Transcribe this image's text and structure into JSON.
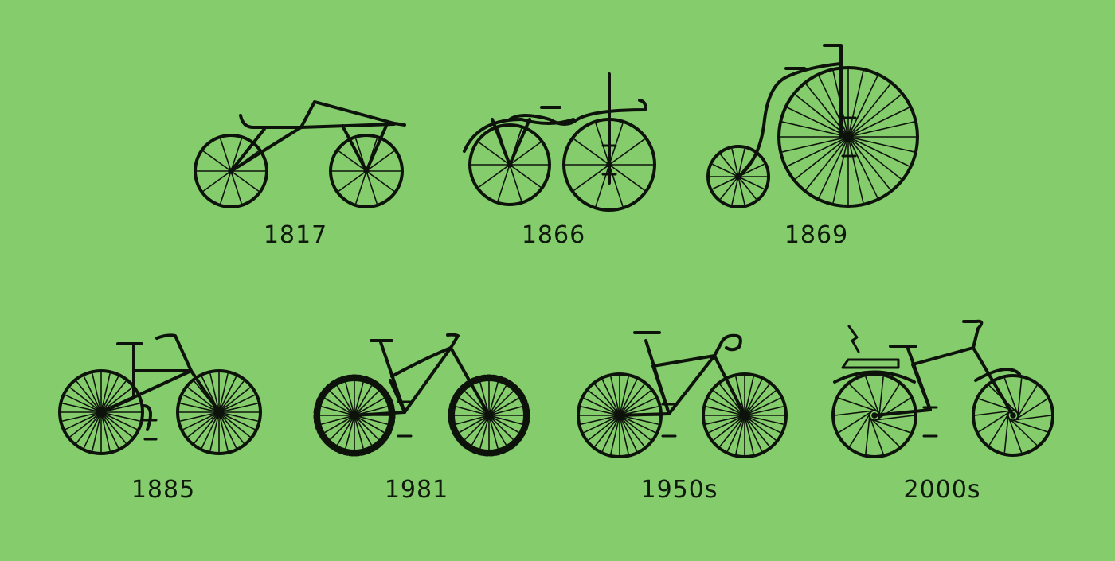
{
  "colors": {
    "background": "#84cc6c",
    "ink": "#0d130b"
  },
  "bicycles": [
    {
      "id": "1817",
      "year_label": "1817",
      "icon": "draisine-icon"
    },
    {
      "id": "1866",
      "year_label": "1866",
      "icon": "velocipede-icon"
    },
    {
      "id": "1869",
      "year_label": "1869",
      "icon": "penny-farthing-icon"
    },
    {
      "id": "1885",
      "year_label": "1885",
      "icon": "safety-bicycle-icon"
    },
    {
      "id": "1981",
      "year_label": "1981",
      "icon": "mountain-bike-icon"
    },
    {
      "id": "1950s",
      "year_label": "1950s",
      "icon": "road-bike-icon"
    },
    {
      "id": "2000s",
      "year_label": "2000s",
      "icon": "electric-bike-icon"
    }
  ]
}
